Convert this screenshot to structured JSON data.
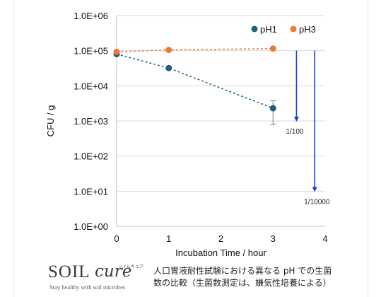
{
  "chart_data": {
    "type": "scatter",
    "xlabel": "Incubation Time / hour",
    "ylabel": "CFU / g",
    "xlim": [
      0,
      4
    ],
    "ylim": [
      1,
      1000000
    ],
    "yscale": "log",
    "xticks": [
      "0",
      "1",
      "2",
      "3",
      "4"
    ],
    "yticks": [
      "1.0E+00",
      "1.0E+01",
      "1.0E+02",
      "1.0E+03",
      "1.0E+04",
      "1.0E+05",
      "1.0E+06"
    ],
    "grid": true,
    "legend_position": "top-right",
    "series": [
      {
        "name": "pH1",
        "color": "#1d5f7e",
        "x": [
          0,
          1,
          3
        ],
        "y": [
          80000,
          32000,
          2300
        ],
        "error": [
          null,
          null,
          [
            800,
            3800
          ]
        ]
      },
      {
        "name": "pH3",
        "color": "#ee7a3a",
        "x": [
          0,
          1,
          3
        ],
        "y": [
          93000,
          105000,
          115000
        ]
      }
    ],
    "annotations": [
      {
        "label": "1/100",
        "x": 3.45,
        "y_from": 100000,
        "y_to": 1000,
        "color": "#1f3fd6"
      },
      {
        "label": "1/10000",
        "x": 3.8,
        "y_from": 100000,
        "y_to": 10,
        "color": "#1f3fd6"
      }
    ]
  },
  "logo": {
    "word": "SOIL",
    "script": "cure",
    "kana": "ソイルキュア",
    "tagline": "Stay healthy with soil microbes"
  },
  "caption": {
    "line1": "人口胃液耐性試験における異なる pH での生菌",
    "line2": "数の比較（生菌数測定は、嫌気性培養による）"
  }
}
